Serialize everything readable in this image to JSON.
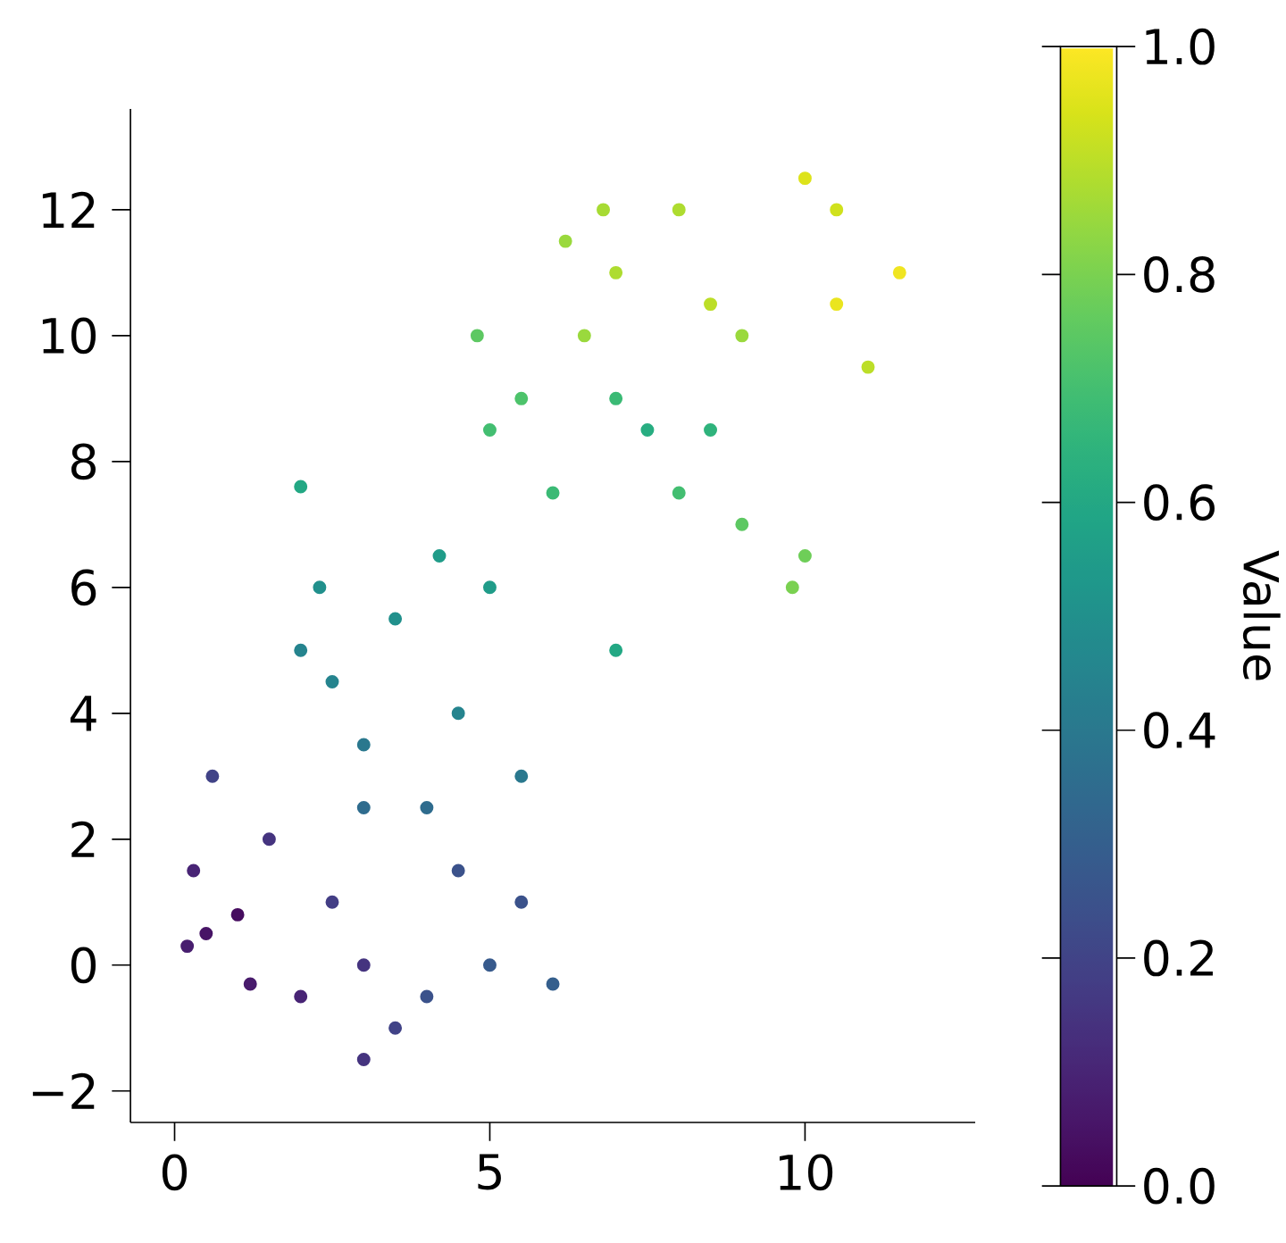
{
  "chart_data": {
    "type": "scatter",
    "clabel": "Value",
    "marker": "circle",
    "xlim": [
      -0.7,
      12.7
    ],
    "ylim": [
      -2.5,
      13.6
    ],
    "xticks": [
      0,
      5,
      10
    ],
    "yticks": [
      {
        "value": -2,
        "label": "−2"
      },
      0,
      2,
      4,
      6,
      8,
      10,
      12
    ],
    "clim": [
      0,
      1
    ],
    "cticks": [
      {
        "value": 0,
        "label": "0.0"
      },
      0.2,
      0.4,
      0.6,
      0.8,
      {
        "value": 1,
        "label": "1.0"
      }
    ],
    "x": [
      1.0,
      0.5,
      0.3,
      1.5,
      0.6,
      2.0,
      3.0,
      3.0,
      4.0,
      5.0,
      6.0,
      5.5,
      4.5,
      0.2,
      1.2,
      2.5,
      3.5,
      2.5,
      3.0,
      3.5,
      4.5,
      5.0,
      2.0,
      3.0,
      5.5,
      4.0,
      2.3,
      4.2,
      5.0,
      5.5,
      6.0,
      4.8,
      2.0,
      7.0,
      7.0,
      6.5,
      7.5,
      8.5,
      9.0,
      10.0,
      9.0,
      10.5,
      11.5,
      10.0,
      8.0,
      7.0,
      8.0,
      11.0,
      6.2,
      9.8,
      10.5,
      6.8,
      8.5
    ],
    "values": [
      0.8,
      0.5,
      1.5,
      2.0,
      3.0,
      -0.5,
      -1.5,
      0.0,
      -0.5,
      0.0,
      -0.3,
      1.0,
      1.5,
      0.3,
      -0.3,
      1.0,
      -1.0,
      4.5,
      3.5,
      5.5,
      4.0,
      6.0,
      5.0,
      2.5,
      3.0,
      2.5,
      6.0,
      6.5,
      8.5,
      9.0,
      7.5,
      10.0,
      7.6,
      5.0,
      11.0,
      10.0,
      8.5,
      8.5,
      7.0,
      6.5,
      10.0,
      10.5,
      11.0,
      12.5,
      12.0,
      9.0,
      7.5,
      9.5,
      11.5,
      6.0,
      12.0,
      12.0,
      10.5
    ],
    "cvalues": [
      0.03,
      0.05,
      0.1,
      0.15,
      0.2,
      0.1,
      0.15,
      0.15,
      0.25,
      0.28,
      0.3,
      0.25,
      0.25,
      0.08,
      0.07,
      0.18,
      0.2,
      0.45,
      0.4,
      0.5,
      0.45,
      0.55,
      0.45,
      0.35,
      0.4,
      0.35,
      0.5,
      0.55,
      0.7,
      0.72,
      0.68,
      0.75,
      0.6,
      0.6,
      0.88,
      0.85,
      0.62,
      0.65,
      0.75,
      0.78,
      0.85,
      0.97,
      0.98,
      0.95,
      0.88,
      0.68,
      0.7,
      0.9,
      0.85,
      0.8,
      0.93,
      0.87,
      0.9
    ]
  }
}
